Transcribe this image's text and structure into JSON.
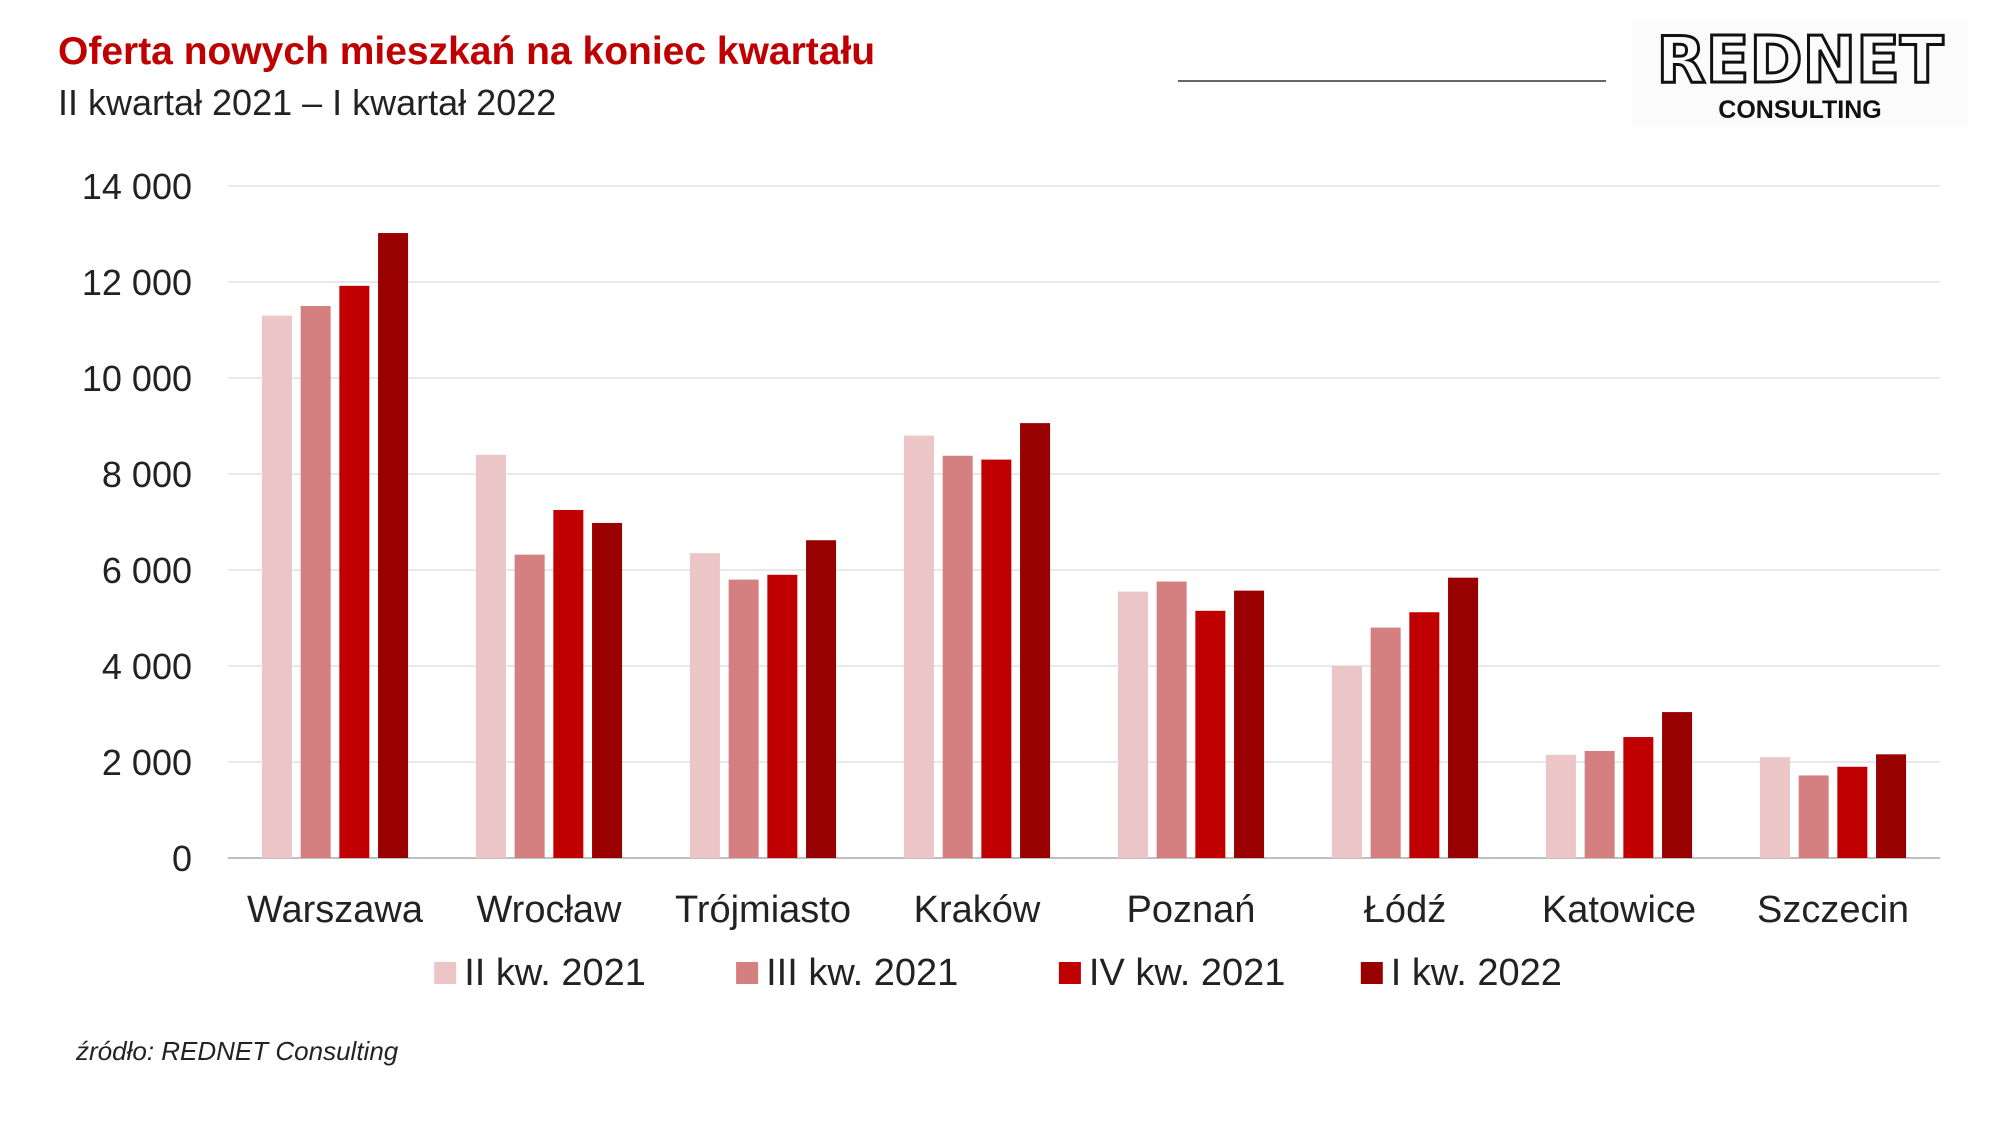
{
  "header": {
    "title": "Oferta nowych mieszkań na koniec kwartału",
    "subtitle": "II kwartał 2021 – I kwartał 2022"
  },
  "logo": {
    "name": "REDNET",
    "tagline": "CONSULTING"
  },
  "source": "źródło: REDNET Consulting",
  "chart_data": {
    "type": "bar",
    "categories": [
      "Warszawa",
      "Wrocław",
      "Trójmiasto",
      "Kraków",
      "Poznań",
      "Łódź",
      "Katowice",
      "Szczecin"
    ],
    "series": [
      {
        "name": "II kw. 2021",
        "color": "#ecc6c6",
        "values": [
          11300,
          8400,
          6350,
          8800,
          5550,
          4000,
          2150,
          2100
        ]
      },
      {
        "name": "III kw. 2021",
        "color": "#d48080",
        "values": [
          11500,
          6320,
          5800,
          8380,
          5760,
          4800,
          2230,
          1720
        ]
      },
      {
        "name": "IV kw. 2021",
        "color": "#c00000",
        "values": [
          11920,
          7250,
          5900,
          8300,
          5150,
          5120,
          2520,
          1900
        ]
      },
      {
        "name": "I kw. 2022",
        "color": "#990000",
        "values": [
          13020,
          6980,
          6620,
          9060,
          5570,
          5840,
          3040,
          2160
        ]
      }
    ],
    "ylim": [
      0,
      14000
    ],
    "yticks": [
      0,
      2000,
      4000,
      6000,
      8000,
      10000,
      12000,
      14000
    ],
    "ytick_labels": [
      "0",
      "2 000",
      "4 000",
      "6 000",
      "8 000",
      "10 000",
      "12 000",
      "14 000"
    ],
    "xlabel": "",
    "ylabel": "",
    "grid": true,
    "legend_position": "bottom"
  }
}
